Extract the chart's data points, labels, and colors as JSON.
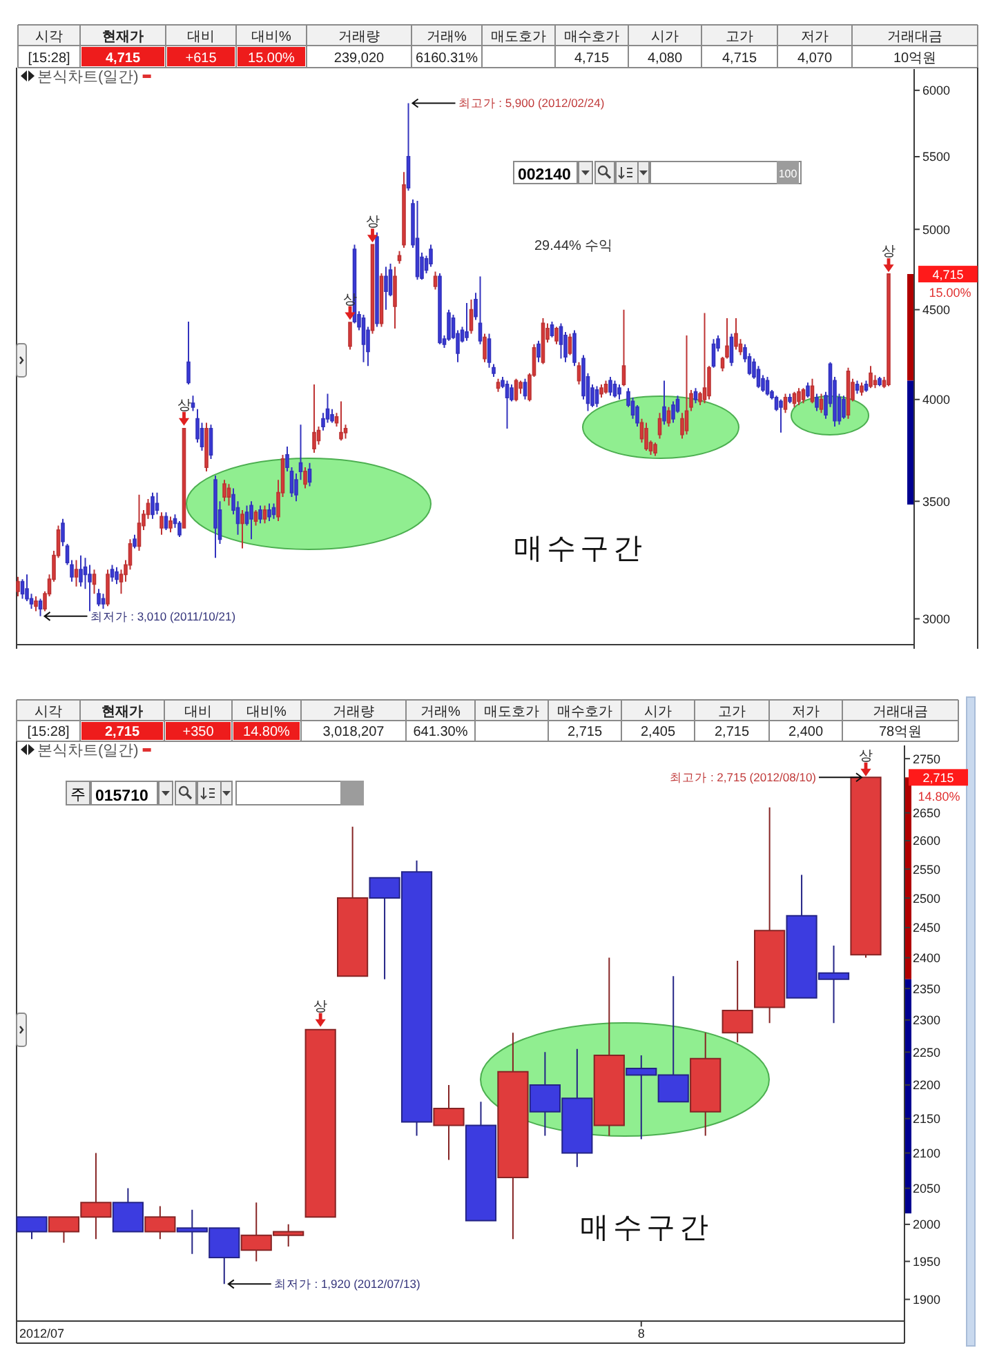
{
  "chart_data": [
    {
      "type": "other",
      "categories": [
        "시각",
        "현재가",
        "대비",
        "대비%",
        "거래량",
        "거래%",
        "매도호가",
        "매수호가",
        "시가",
        "고가",
        "저가",
        "거래대금"
      ],
      "annotations": [
        "[15:28]",
        "4,715",
        "+615",
        "15.00%",
        "239,020",
        "6160.31%",
        null,
        "4,715",
        "4,080",
        "4,715",
        "4,070",
        "10억원"
      ],
      "colors": [
        null,
        "#ee1c1c",
        "#ee1c1c",
        "#ee1c1c",
        null,
        null,
        null,
        null,
        null,
        null,
        null,
        null
      ]
    },
    {
      "type": "candlestick",
      "title": "본식차트(일간)",
      "categories": [
        null,
        null,
        null,
        null,
        null,
        null,
        null,
        null,
        null,
        null,
        null,
        null,
        null,
        null,
        null,
        null,
        null,
        null,
        null,
        null,
        null,
        null,
        null,
        null,
        null,
        null,
        null,
        null,
        null,
        null,
        null,
        null,
        null,
        null,
        null,
        null,
        null,
        null,
        null,
        null,
        null,
        null,
        null,
        null,
        null,
        null,
        null,
        null,
        null,
        null,
        null,
        null,
        null,
        null,
        null,
        null,
        null,
        null,
        null,
        null,
        null,
        null,
        null,
        null,
        null,
        null,
        null,
        null,
        null,
        null,
        null,
        null,
        null,
        null,
        null,
        null,
        null,
        null,
        null,
        null,
        null,
        null,
        null,
        null,
        null,
        null,
        null,
        null,
        null,
        null,
        null,
        null,
        null,
        null,
        null,
        null,
        null,
        null,
        null,
        null,
        null,
        null,
        null,
        null,
        null,
        null,
        null,
        null,
        null,
        null,
        null,
        null,
        null,
        null,
        null,
        null,
        null,
        null,
        null,
        null,
        null,
        null,
        null,
        null,
        null,
        null,
        null,
        null,
        null,
        null,
        null,
        null,
        null,
        null,
        null,
        null,
        null,
        null,
        null,
        null,
        null,
        null,
        null,
        null,
        null,
        null,
        null,
        null,
        null,
        null,
        null,
        null,
        null,
        null,
        null,
        null,
        null,
        null,
        null,
        null,
        null,
        null,
        null,
        null,
        null,
        null,
        null,
        null,
        null,
        null,
        null,
        null,
        null,
        null,
        null,
        null,
        null,
        null,
        null,
        null,
        null,
        null,
        null,
        null,
        null,
        null,
        null,
        null,
        null,
        null,
        null,
        null,
        null,
        null,
        null
      ],
      "ohlc": [
        [
          3110,
          3170,
          3090,
          3150
        ],
        [
          3150,
          3160,
          3080,
          3100
        ],
        [
          3120,
          3180,
          3070,
          3080
        ],
        [
          3080,
          3100,
          3040,
          3060
        ],
        [
          3050,
          3090,
          3030,
          3070
        ],
        [
          3070,
          3080,
          3010,
          3040
        ],
        [
          3040,
          3110,
          3030,
          3100
        ],
        [
          3100,
          3180,
          3090,
          3160
        ],
        [
          3160,
          3280,
          3150,
          3260
        ],
        [
          3260,
          3390,
          3250,
          3370
        ],
        [
          3400,
          3420,
          3300,
          3320
        ],
        [
          3300,
          3310,
          3220,
          3230
        ],
        [
          3220,
          3240,
          3150,
          3170
        ],
        [
          3170,
          3240,
          3130,
          3200
        ],
        [
          3200,
          3260,
          3130,
          3150
        ],
        [
          3210,
          3250,
          3120,
          3180
        ],
        [
          3180,
          3220,
          3030,
          3150
        ],
        [
          3140,
          3200,
          3100,
          3180
        ],
        [
          3100,
          3120,
          3050,
          3060
        ],
        [
          3080,
          3100,
          3040,
          3060
        ],
        [
          3060,
          3200,
          3050,
          3180
        ],
        [
          3200,
          3220,
          3150,
          3170
        ],
        [
          3190,
          3210,
          3140,
          3160
        ],
        [
          3150,
          3200,
          3100,
          3180
        ],
        [
          3180,
          3240,
          3150,
          3220
        ],
        [
          3220,
          3330,
          3200,
          3310
        ],
        [
          3330,
          3350,
          3290,
          3300
        ],
        [
          3300,
          3530,
          3280,
          3400
        ],
        [
          3390,
          3460,
          3370,
          3440
        ],
        [
          3440,
          3510,
          3420,
          3490
        ],
        [
          3520,
          3540,
          3420,
          3440
        ],
        [
          3490,
          3540,
          3440,
          3460
        ],
        [
          3380,
          3450,
          3350,
          3430
        ],
        [
          3430,
          3450,
          3370,
          3380
        ],
        [
          3380,
          3430,
          3360,
          3410
        ],
        [
          3420,
          3440,
          3380,
          3400
        ],
        [
          3400,
          3410,
          3340,
          3350
        ],
        [
          3380,
          3850,
          3380,
          3850
        ],
        [
          4200,
          4430,
          4080,
          4090
        ],
        [
          3980,
          4020,
          3940,
          3960
        ],
        [
          3900,
          3950,
          3780,
          3800
        ],
        [
          3850,
          3880,
          3740,
          3760
        ],
        [
          3660,
          3880,
          3640,
          3850
        ],
        [
          3850,
          3870,
          3700,
          3720
        ],
        [
          3600,
          3620,
          3250,
          3380
        ],
        [
          3460,
          3500,
          3310,
          3330
        ],
        [
          3520,
          3600,
          3500,
          3580
        ],
        [
          3520,
          3580,
          3480,
          3560
        ],
        [
          3530,
          3560,
          3440,
          3460
        ],
        [
          3470,
          3500,
          3350,
          3400
        ],
        [
          3400,
          3460,
          3290,
          3440
        ],
        [
          3450,
          3480,
          3390,
          3400
        ],
        [
          3480,
          3500,
          3330,
          3420
        ],
        [
          3410,
          3460,
          3390,
          3450
        ],
        [
          3460,
          3480,
          3400,
          3420
        ],
        [
          3420,
          3480,
          3400,
          3460
        ],
        [
          3460,
          3490,
          3410,
          3430
        ],
        [
          3470,
          3490,
          3420,
          3440
        ],
        [
          3430,
          3600,
          3410,
          3540
        ],
        [
          3540,
          3720,
          3520,
          3700
        ],
        [
          3720,
          3760,
          3640,
          3660
        ],
        [
          3640,
          3660,
          3520,
          3540
        ],
        [
          3600,
          3630,
          3500,
          3530
        ],
        [
          3680,
          3870,
          3600,
          3640
        ],
        [
          3580,
          3660,
          3560,
          3640
        ],
        [
          3650,
          3680,
          3570,
          3590
        ],
        [
          3750,
          4080,
          3730,
          3830
        ],
        [
          3790,
          3860,
          3770,
          3840
        ],
        [
          3900,
          3930,
          3840,
          3860
        ],
        [
          3950,
          4030,
          3880,
          3900
        ],
        [
          3920,
          3950,
          3880,
          3890
        ],
        [
          3880,
          3930,
          3860,
          3910
        ],
        [
          3800,
          3990,
          3790,
          3830
        ],
        [
          3830,
          3870,
          3800,
          3850
        ],
        [
          4290,
          4425,
          4270,
          4425
        ],
        [
          4870,
          4900,
          4420,
          4430
        ],
        [
          4470,
          4490,
          4380,
          4400
        ],
        [
          4450,
          4470,
          4200,
          4300
        ],
        [
          4380,
          4400,
          4180,
          4260
        ],
        [
          4380,
          4900,
          4360,
          4900
        ],
        [
          4950,
          4980,
          4400,
          4420
        ],
        [
          4420,
          4720,
          4400,
          4700
        ],
        [
          4700,
          4760,
          4500,
          4610
        ],
        [
          4740,
          4780,
          4580,
          4590
        ],
        [
          4520,
          4760,
          4390,
          4700
        ],
        [
          4800,
          4860,
          4780,
          4830
        ],
        [
          4900,
          5390,
          4880,
          5300
        ],
        [
          5500,
          5900,
          5260,
          5280
        ],
        [
          5170,
          5200,
          4880,
          4900
        ],
        [
          4940,
          5190,
          4680,
          4700
        ],
        [
          4820,
          4850,
          4680,
          4690
        ],
        [
          4810,
          4830,
          4720,
          4740
        ],
        [
          4870,
          4900,
          4760,
          4780
        ],
        [
          4640,
          4730,
          4620,
          4700
        ],
        [
          4700,
          4720,
          4300,
          4310
        ],
        [
          4330,
          4350,
          4280,
          4300
        ],
        [
          4480,
          4500,
          4320,
          4330
        ],
        [
          4450,
          4470,
          4330,
          4340
        ],
        [
          4360,
          4380,
          4200,
          4250
        ],
        [
          4380,
          4400,
          4310,
          4320
        ],
        [
          4370,
          4540,
          4320,
          4340
        ],
        [
          4380,
          4560,
          4360,
          4500
        ],
        [
          4560,
          4600,
          4440,
          4460
        ],
        [
          4420,
          4700,
          4300,
          4320
        ],
        [
          4220,
          4360,
          4200,
          4340
        ],
        [
          4330,
          4360,
          4170,
          4200
        ],
        [
          4170,
          4190,
          4120,
          4140
        ],
        [
          4060,
          4110,
          4040,
          4090
        ],
        [
          4100,
          4120,
          4060,
          4070
        ],
        [
          4080,
          4100,
          3850,
          4010
        ],
        [
          4060,
          4080,
          3990,
          4000
        ],
        [
          4000,
          4110,
          3990,
          4100
        ],
        [
          4060,
          4100,
          4030,
          4090
        ],
        [
          4090,
          4110,
          4000,
          4020
        ],
        [
          4000,
          4140,
          3990,
          4130
        ],
        [
          4130,
          4300,
          4120,
          4280
        ],
        [
          4300,
          4320,
          4200,
          4230
        ],
        [
          4200,
          4450,
          4190,
          4420
        ],
        [
          4330,
          4420,
          4310,
          4390
        ],
        [
          4410,
          4430,
          4340,
          4350
        ],
        [
          4320,
          4400,
          4300,
          4390
        ],
        [
          4400,
          4420,
          4220,
          4300
        ],
        [
          4350,
          4370,
          4200,
          4230
        ],
        [
          4250,
          4360,
          4240,
          4340
        ],
        [
          4360,
          4380,
          4180,
          4200
        ],
        [
          4100,
          4200,
          4080,
          4180
        ],
        [
          4220,
          4240,
          4000,
          4020
        ],
        [
          4120,
          4140,
          3940,
          3980
        ],
        [
          4060,
          4080,
          3960,
          3970
        ],
        [
          4050,
          4070,
          3960,
          3980
        ],
        [
          4030,
          4080,
          4010,
          4060
        ],
        [
          4040,
          4100,
          4030,
          4080
        ],
        [
          4100,
          4120,
          4020,
          4040
        ],
        [
          4080,
          4100,
          4010,
          4020
        ],
        [
          4060,
          4080,
          4000,
          4030
        ],
        [
          4080,
          4500,
          4070,
          4180
        ],
        [
          4040,
          4060,
          3960,
          3970
        ],
        [
          3990,
          4010,
          3900,
          3920
        ],
        [
          3960,
          3970,
          3860,
          3880
        ],
        [
          3800,
          3900,
          3780,
          3880
        ],
        [
          3750,
          3880,
          3740,
          3850
        ],
        [
          3740,
          3790,
          3720,
          3780
        ],
        [
          3730,
          3780,
          3715,
          3770
        ],
        [
          3820,
          3930,
          3800,
          3900
        ],
        [
          3960,
          4100,
          3870,
          3890
        ],
        [
          3880,
          3960,
          3860,
          3940
        ],
        [
          3970,
          3990,
          3880,
          3900
        ],
        [
          4000,
          4020,
          3930,
          3940
        ],
        [
          3820,
          3930,
          3800,
          3900
        ],
        [
          3840,
          4350,
          3820,
          3940
        ],
        [
          3960,
          4050,
          3940,
          4030
        ],
        [
          4040,
          4060,
          3980,
          4000
        ],
        [
          3990,
          4040,
          3970,
          4030
        ],
        [
          4000,
          4480,
          3980,
          4060
        ],
        [
          4020,
          4180,
          4000,
          4170
        ],
        [
          4300,
          4330,
          4170,
          4180
        ],
        [
          4330,
          4350,
          4260,
          4280
        ],
        [
          4170,
          4230,
          4150,
          4220
        ],
        [
          4230,
          4450,
          4220,
          4290
        ],
        [
          4340,
          4360,
          4180,
          4200
        ],
        [
          4290,
          4450,
          4270,
          4360
        ],
        [
          4260,
          4330,
          4240,
          4300
        ],
        [
          4280,
          4300,
          4200,
          4220
        ],
        [
          4230,
          4250,
          4130,
          4140
        ],
        [
          4200,
          4220,
          4110,
          4120
        ],
        [
          4160,
          4180,
          4060,
          4070
        ],
        [
          4110,
          4130,
          4040,
          4050
        ],
        [
          4100,
          4120,
          4020,
          4030
        ],
        [
          4040,
          4050,
          4000,
          4010
        ],
        [
          4010,
          4020,
          3940,
          3950
        ],
        [
          3990,
          4000,
          3830,
          3960
        ],
        [
          3950,
          4030,
          3930,
          4010
        ],
        [
          4010,
          4030,
          3980,
          3990
        ],
        [
          3980,
          4040,
          3960,
          4030
        ],
        [
          3990,
          4060,
          3970,
          4040
        ],
        [
          4000,
          4060,
          3980,
          4050
        ],
        [
          4070,
          4090,
          4010,
          4020
        ],
        [
          3990,
          4110,
          3980,
          4070
        ],
        [
          4010,
          4030,
          3940,
          3960
        ],
        [
          3950,
          4030,
          3930,
          4000
        ],
        [
          4020,
          4040,
          3900,
          3920
        ],
        [
          4190,
          4200,
          3960,
          3980
        ],
        [
          4100,
          4120,
          3860,
          3890
        ],
        [
          4010,
          4030,
          3870,
          3890
        ],
        [
          4000,
          4020,
          3900,
          3910
        ],
        [
          3920,
          4170,
          3900,
          4150
        ],
        [
          4000,
          4110,
          3990,
          4090
        ],
        [
          4080,
          4100,
          4030,
          4050
        ],
        [
          4040,
          4090,
          4020,
          4070
        ],
        [
          4080,
          4100,
          4040,
          4050
        ],
        [
          4070,
          4180,
          4060,
          4140
        ],
        [
          4080,
          4130,
          4060,
          4100
        ],
        [
          4110,
          4120,
          4070,
          4080
        ],
        [
          4070,
          4120,
          4060,
          4100
        ],
        [
          4080,
          4715,
          4070,
          4715
        ]
      ],
      "log": true,
      "ylim": [
        2900,
        6170
      ],
      "yticks": [
        6000,
        5500,
        5000,
        4500,
        4000,
        3500,
        3000
      ],
      "series": [
        {
          "type": "scatter",
          "color": "#e02020",
          "values": [
            null,
            null,
            null,
            null,
            null,
            null,
            null,
            null,
            null,
            null,
            null,
            null,
            null,
            null,
            null,
            null,
            null,
            null,
            null,
            null,
            null,
            null,
            null,
            null,
            null,
            null,
            null,
            null,
            null,
            null,
            null,
            null,
            null,
            null,
            null,
            null,
            null,
            3900,
            null,
            null,
            null,
            null,
            null,
            null,
            null,
            null,
            null,
            null,
            null,
            null,
            null,
            null,
            null,
            null,
            null,
            null,
            null,
            null,
            null,
            null,
            null,
            null,
            null,
            null,
            null,
            null,
            null,
            null,
            null,
            null,
            null,
            null,
            null,
            null,
            4480,
            null,
            null,
            null,
            null,
            4960,
            null,
            null,
            null,
            null,
            null,
            null,
            null,
            null,
            null,
            null,
            null,
            null,
            null,
            null,
            null,
            null,
            null,
            null,
            null,
            null,
            null,
            null,
            null,
            null,
            null,
            null,
            null,
            null,
            null,
            null,
            null,
            null,
            null,
            null,
            null,
            null,
            null,
            null,
            null,
            null,
            null,
            null,
            null,
            null,
            null,
            null,
            null,
            null,
            null,
            null,
            null,
            null,
            null,
            null,
            null,
            null,
            null,
            null,
            null,
            null,
            null,
            null,
            null,
            null,
            null,
            null,
            null,
            null,
            null,
            null,
            null,
            null,
            null,
            null,
            null,
            null,
            null,
            null,
            null,
            null,
            null,
            null,
            null,
            null,
            null,
            null,
            null,
            null,
            null,
            null,
            null,
            null,
            null,
            null,
            null,
            null,
            null,
            null,
            null,
            null,
            null,
            null,
            null,
            null,
            null,
            null,
            null,
            null,
            null,
            null,
            null,
            null,
            null,
            null,
            4770
          ],
          "value_labels": [
            null,
            null,
            null,
            null,
            null,
            null,
            null,
            null,
            null,
            null,
            null,
            null,
            null,
            null,
            null,
            null,
            null,
            null,
            null,
            null,
            null,
            null,
            null,
            null,
            null,
            null,
            null,
            null,
            null,
            null,
            null,
            null,
            null,
            null,
            null,
            null,
            null,
            "상",
            null,
            null,
            null,
            null,
            null,
            null,
            null,
            null,
            null,
            null,
            null,
            null,
            null,
            null,
            null,
            null,
            null,
            null,
            null,
            null,
            null,
            null,
            null,
            null,
            null,
            null,
            null,
            null,
            null,
            null,
            null,
            null,
            null,
            null,
            null,
            null,
            "상",
            null,
            null,
            null,
            null,
            "상",
            null,
            null,
            null,
            null,
            null,
            null,
            null,
            null,
            null,
            null,
            null,
            null,
            null,
            null,
            null,
            null,
            null,
            null,
            null,
            null,
            null,
            null,
            null,
            null,
            null,
            null,
            null,
            null,
            null,
            null,
            null,
            null,
            null,
            null,
            null,
            null,
            null,
            null,
            null,
            null,
            null,
            null,
            null,
            null,
            null,
            null,
            null,
            null,
            null,
            null,
            null,
            null,
            null,
            null,
            null,
            null,
            null,
            null,
            null,
            null,
            null,
            null,
            null,
            null,
            null,
            null,
            null,
            null,
            null,
            null,
            null,
            null,
            null,
            null,
            null,
            null,
            null,
            null,
            null,
            null,
            null,
            null,
            null,
            null,
            null,
            null,
            null,
            null,
            null,
            null,
            null,
            null,
            null,
            null,
            null,
            null,
            null,
            null,
            null,
            null,
            null,
            null,
            null,
            null,
            null,
            null,
            null,
            null,
            null,
            null,
            null,
            null,
            null,
            null,
            "상"
          ]
        }
      ],
      "annotations": [
        "최고가 : 5,900 (2012/02/24)",
        "최저가 : 3,010 (2011/10/21)",
        "29.44% 수익",
        "매수구간",
        "4,715",
        "15.00%",
        "002140",
        "100"
      ]
    },
    {
      "type": "other",
      "categories": [
        "시각",
        "현재가",
        "대비",
        "대비%",
        "거래량",
        "거래%",
        "매도호가",
        "매수호가",
        "시가",
        "고가",
        "저가",
        "거래대금"
      ],
      "annotations": [
        "[15:28]",
        "2,715",
        "+350",
        "14.80%",
        "3,018,207",
        "641.30%",
        null,
        "2,715",
        "2,405",
        "2,715",
        "2,400",
        "78억원"
      ],
      "colors": [
        null,
        "#ee1c1c",
        "#ee1c1c",
        "#ee1c1c",
        null,
        null,
        null,
        null,
        null,
        null,
        null,
        null
      ]
    },
    {
      "type": "candlestick",
      "title": "본식차트(일간)",
      "categories": [
        null,
        null,
        null,
        null,
        null,
        null,
        null,
        null,
        null,
        null,
        null,
        null,
        null,
        null,
        null,
        null,
        null,
        null,
        null,
        "8",
        null,
        null,
        null,
        null,
        null,
        null,
        null
      ],
      "ohlc": [
        [
          2010,
          2010,
          1980,
          1990
        ],
        [
          1990,
          2010,
          1975,
          2010
        ],
        [
          2010,
          2100,
          1980,
          2030
        ],
        [
          2030,
          2050,
          1990,
          1990
        ],
        [
          1990,
          2025,
          1980,
          2010
        ],
        [
          1995,
          2020,
          1960,
          1990
        ],
        [
          1995,
          1995,
          1920,
          1955
        ],
        [
          1965,
          2030,
          1950,
          1985
        ],
        [
          1985,
          2000,
          1970,
          1990
        ],
        [
          2010,
          2285,
          2010,
          2285
        ],
        [
          2370,
          2625,
          2370,
          2500
        ],
        [
          2535,
          2535,
          2365,
          2500
        ],
        [
          2545,
          2565,
          2125,
          2145
        ],
        [
          2140,
          2200,
          2090,
          2165
        ],
        [
          2140,
          2175,
          2005,
          2005
        ],
        [
          2065,
          2280,
          1980,
          2220
        ],
        [
          2200,
          2250,
          2125,
          2160
        ],
        [
          2180,
          2255,
          2080,
          2100
        ],
        [
          2140,
          2400,
          2125,
          2245
        ],
        [
          2225,
          2245,
          2120,
          2215
        ],
        [
          2215,
          2370,
          2175,
          2175
        ],
        [
          2160,
          2280,
          2125,
          2240
        ],
        [
          2280,
          2395,
          2265,
          2315
        ],
        [
          2320,
          2660,
          2295,
          2445
        ],
        [
          2470,
          2540,
          2335,
          2335
        ],
        [
          2375,
          2420,
          2295,
          2365
        ],
        [
          2405,
          2715,
          2400,
          2715
        ]
      ],
      "log": true,
      "ylim": [
        1872,
        2775
      ],
      "yticks": [
        2750,
        2650,
        2600,
        2550,
        2500,
        2450,
        2400,
        2350,
        2300,
        2250,
        2200,
        2150,
        2100,
        2050,
        2000,
        1950,
        1900
      ],
      "series": [
        {
          "type": "scatter",
          "color": "#e02020",
          "values": [
            null,
            null,
            null,
            null,
            null,
            null,
            null,
            null,
            null,
            2300,
            null,
            null,
            null,
            null,
            null,
            null,
            null,
            null,
            null,
            null,
            null,
            null,
            null,
            null,
            null,
            null,
            2730
          ],
          "value_labels": [
            null,
            null,
            null,
            null,
            null,
            null,
            null,
            null,
            null,
            "상",
            null,
            null,
            null,
            null,
            null,
            null,
            null,
            null,
            null,
            null,
            null,
            null,
            null,
            null,
            null,
            null,
            "상"
          ]
        }
      ],
      "annotations": [
        "최고가 : 2,715 (2012/08/10)",
        "최저가 : 1,920 (2012/07/13)",
        "매수구간",
        "2,715",
        "14.80%",
        "주",
        "015710",
        "2012/07"
      ]
    }
  ]
}
